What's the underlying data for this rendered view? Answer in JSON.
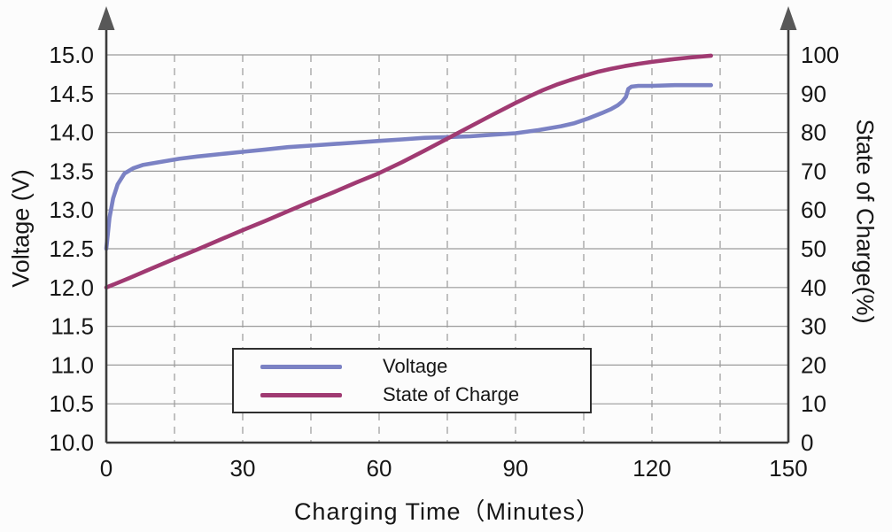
{
  "figure": {
    "background": "#fcfcfc",
    "text_color": "#161616",
    "grid_color": "#9a9a9a",
    "axis_color": "#3c3c3c",
    "arrow_color": "#585858"
  },
  "chart_data": {
    "type": "line",
    "title": "",
    "xlabel": "Charging Time（Minutes）",
    "ylabel_left": "Voltage (V)",
    "ylabel_right": "State of Charge(%)",
    "xlim": [
      0,
      150
    ],
    "ylim_left": [
      10.0,
      15.0
    ],
    "ylim_right": [
      0,
      100
    ],
    "x_ticks": [
      0,
      30,
      60,
      90,
      120,
      150
    ],
    "y_ticks_left": [
      10.0,
      10.5,
      11.0,
      11.5,
      12.0,
      12.5,
      13.0,
      13.5,
      14.0,
      14.5,
      15.0
    ],
    "y_ticks_right": [
      0,
      10,
      20,
      30,
      40,
      50,
      60,
      70,
      80,
      90,
      100
    ],
    "x_grid_minor_step": 15,
    "grid": {
      "horizontal": "solid",
      "vertical": "dashed"
    },
    "legend": {
      "position": "lower-left-inside",
      "border": true
    },
    "series": [
      {
        "name": "Voltage",
        "key": "voltage-curve",
        "axis": "left",
        "color": "#7b82c4",
        "points": [
          [
            0,
            12.5
          ],
          [
            0.7,
            12.9
          ],
          [
            1.5,
            13.15
          ],
          [
            2.5,
            13.33
          ],
          [
            4,
            13.47
          ],
          [
            6,
            13.54
          ],
          [
            8,
            13.58
          ],
          [
            12,
            13.62
          ],
          [
            16,
            13.66
          ],
          [
            20,
            13.69
          ],
          [
            25,
            13.72
          ],
          [
            30,
            13.75
          ],
          [
            35,
            13.78
          ],
          [
            40,
            13.81
          ],
          [
            45,
            13.83
          ],
          [
            50,
            13.85
          ],
          [
            55,
            13.87
          ],
          [
            60,
            13.89
          ],
          [
            65,
            13.91
          ],
          [
            70,
            13.93
          ],
          [
            75,
            13.94
          ],
          [
            80,
            13.95
          ],
          [
            85,
            13.97
          ],
          [
            90,
            13.99
          ],
          [
            95,
            14.03
          ],
          [
            100,
            14.08
          ],
          [
            103,
            14.12
          ],
          [
            106,
            14.18
          ],
          [
            109,
            14.25
          ],
          [
            111,
            14.3
          ],
          [
            112.5,
            14.35
          ],
          [
            113.5,
            14.4
          ],
          [
            114.3,
            14.46
          ],
          [
            114.8,
            14.56
          ],
          [
            115.5,
            14.59
          ],
          [
            117,
            14.6
          ],
          [
            120,
            14.6
          ],
          [
            125,
            14.61
          ],
          [
            130,
            14.61
          ],
          [
            133,
            14.61
          ]
        ]
      },
      {
        "name": "State of Charge",
        "key": "state-of-charge-curve",
        "axis": "right",
        "color": "#a03a72",
        "points": [
          [
            0,
            40
          ],
          [
            5,
            42.4
          ],
          [
            10,
            44.9
          ],
          [
            15,
            47.4
          ],
          [
            20,
            49.8
          ],
          [
            25,
            52.3
          ],
          [
            30,
            54.8
          ],
          [
            35,
            57.2
          ],
          [
            40,
            59.7
          ],
          [
            45,
            62.2
          ],
          [
            50,
            64.6
          ],
          [
            55,
            67.1
          ],
          [
            60,
            69.5
          ],
          [
            65,
            72.3
          ],
          [
            70,
            75.3
          ],
          [
            75,
            78.4
          ],
          [
            80,
            81.5
          ],
          [
            85,
            84.6
          ],
          [
            90,
            87.6
          ],
          [
            93,
            89.3
          ],
          [
            96,
            90.9
          ],
          [
            99,
            92.3
          ],
          [
            102,
            93.5
          ],
          [
            105,
            94.6
          ],
          [
            108,
            95.6
          ],
          [
            111,
            96.4
          ],
          [
            114,
            97.1
          ],
          [
            117,
            97.7
          ],
          [
            120,
            98.2
          ],
          [
            124,
            98.8
          ],
          [
            128,
            99.3
          ],
          [
            133,
            99.8
          ]
        ]
      }
    ]
  }
}
